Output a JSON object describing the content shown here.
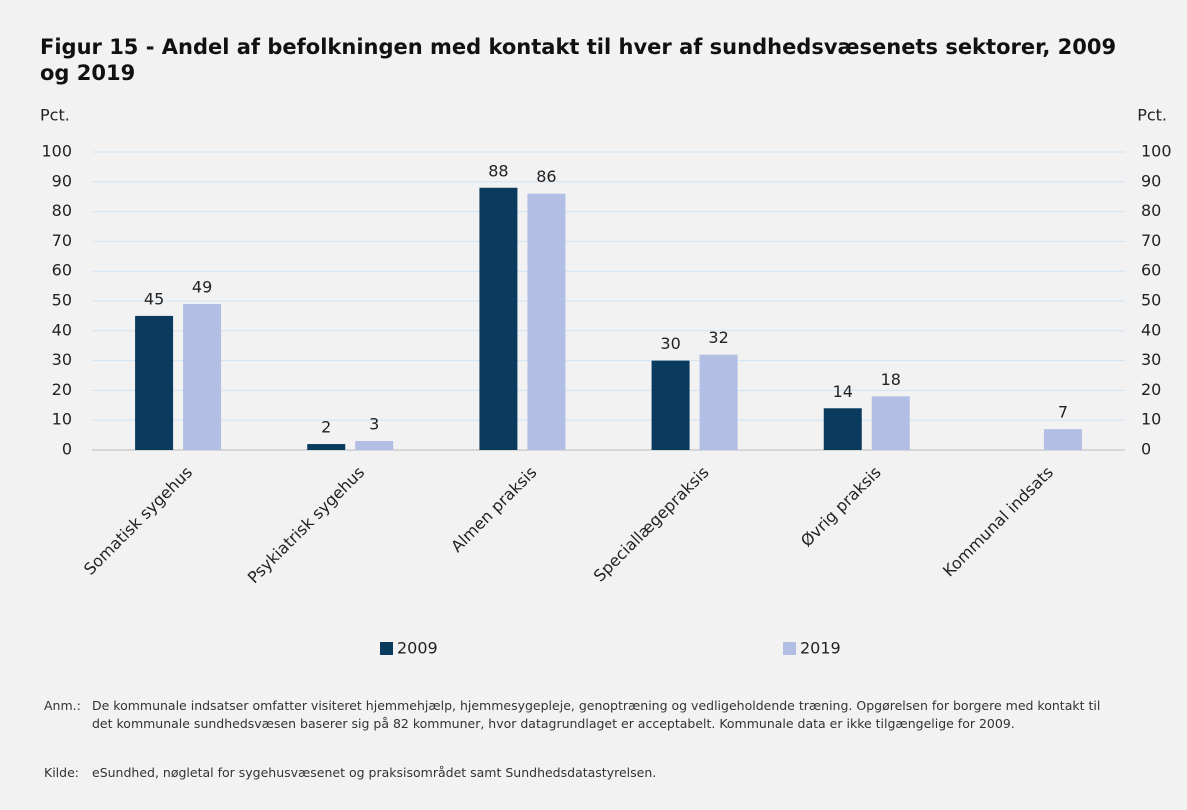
{
  "chart_data": {
    "type": "bar",
    "title": "Figur 15 - Andel af befolkningen med kontakt til hver af sundhedsvæsenets sektorer, 2009 og 2019",
    "ylabel": "Pct.",
    "y2label": "Pct.",
    "categories": [
      "Somatisk sygehus",
      "Psykiatrisk sygehus",
      "Almen praksis",
      "Speciallægepraksis",
      "Øvrig praksis",
      "Kommunal indsats"
    ],
    "series": [
      {
        "name": "2009",
        "color": "#0a3b5e",
        "values": [
          45,
          2,
          88,
          30,
          14,
          null
        ]
      },
      {
        "name": "2019",
        "color": "#b2bee3",
        "values": [
          49,
          3,
          86,
          32,
          18,
          7
        ]
      }
    ],
    "ylim": [
      0,
      100
    ],
    "yticks": [
      0,
      10,
      20,
      30,
      40,
      50,
      60,
      70,
      80,
      90,
      100
    ],
    "y2lim": [
      0,
      100
    ],
    "y2ticks": [
      0,
      10,
      20,
      30,
      40,
      50,
      60,
      70,
      80,
      90,
      100
    ],
    "grid": true,
    "notes": [
      {
        "label": "Anm.:",
        "text": "De kommunale indsatser omfatter visiteret hjemmehjælp, hjemmesygepleje, genoptræning og vedligeholdende træning. Opgørelsen for borgere med kontakt til det kommunale sundhedsvæsen baserer sig på 82 kommuner, hvor datagrundlaget er acceptabelt. Kommunale data er ikke tilgængelige for 2009."
      },
      {
        "label": "Kilde:",
        "text": "eSundhed, nøgletal for sygehusvæsenet og praksisområdet samt Sundhedsdatastyrelsen."
      }
    ]
  }
}
